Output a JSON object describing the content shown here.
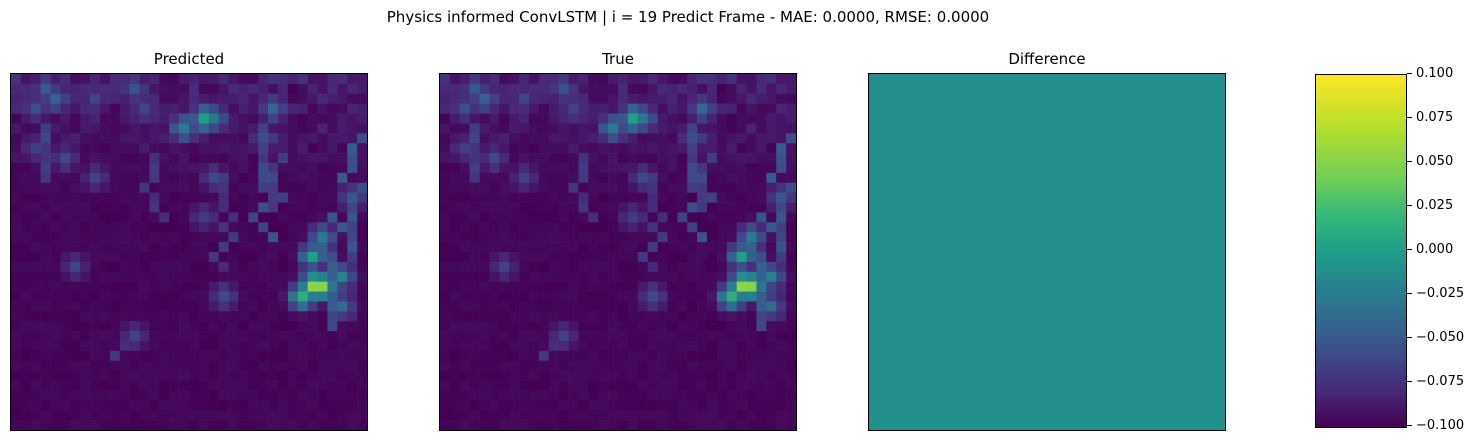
{
  "suptitle": "Physics informed ConvLSTM | i = 19 Predict Frame - MAE: 0.0000, RMSE: 0.0000",
  "chart_data": {
    "type": "heatmap",
    "panels": [
      {
        "title": "Predicted"
      },
      {
        "title": "True"
      },
      {
        "title": "Difference"
      }
    ],
    "grid_size": 36,
    "difference_value": 0.0,
    "colormap": "viridis",
    "colorbar": {
      "vmin": -0.1,
      "vmax": 0.1,
      "ticks": [
        "0.100",
        "0.075",
        "0.050",
        "0.025",
        "0.000",
        "−0.025",
        "−0.050",
        "−0.075",
        "−0.100"
      ]
    },
    "field_hotspots": [
      {
        "r": 2,
        "c": 4,
        "v": 0.28
      },
      {
        "r": 1,
        "c": 3,
        "v": 0.24
      },
      {
        "r": 3,
        "c": 2,
        "v": 0.2
      },
      {
        "r": 2,
        "c": 8,
        "v": 0.18
      },
      {
        "r": 1,
        "c": 12,
        "v": 0.24
      },
      {
        "r": 3,
        "c": 13,
        "v": 0.18
      },
      {
        "r": 4,
        "c": 19,
        "v": 0.46
      },
      {
        "r": 5,
        "c": 17,
        "v": 0.38
      },
      {
        "r": 4,
        "c": 20,
        "v": 0.34
      },
      {
        "r": 3,
        "c": 26,
        "v": 0.28
      },
      {
        "r": 6,
        "c": 25,
        "v": 0.2
      },
      {
        "r": 7,
        "c": 2,
        "v": 0.16
      },
      {
        "r": 8,
        "c": 5,
        "v": 0.18
      },
      {
        "r": 10,
        "c": 8,
        "v": 0.16
      },
      {
        "r": 10,
        "c": 20,
        "v": 0.18
      },
      {
        "r": 12,
        "c": 34,
        "v": 0.24
      },
      {
        "r": 14,
        "c": 19,
        "v": 0.16
      },
      {
        "r": 16,
        "c": 31,
        "v": 0.36
      },
      {
        "r": 18,
        "c": 30,
        "v": 0.44
      },
      {
        "r": 21,
        "c": 30,
        "v": 0.72
      },
      {
        "r": 21,
        "c": 31,
        "v": 0.64
      },
      {
        "r": 22,
        "c": 29,
        "v": 0.56
      },
      {
        "r": 20,
        "c": 33,
        "v": 0.34
      },
      {
        "r": 23,
        "c": 33,
        "v": 0.28
      },
      {
        "r": 19,
        "c": 6,
        "v": 0.16
      },
      {
        "r": 22,
        "c": 21,
        "v": 0.2
      },
      {
        "r": 26,
        "c": 12,
        "v": 0.16
      }
    ],
    "field_streaks": [
      {
        "c": 25,
        "r0": 5,
        "r1": 16,
        "v": 0.2
      },
      {
        "c": 26,
        "r0": 8,
        "r1": 13,
        "v": 0.18
      },
      {
        "c": 3,
        "r0": 5,
        "r1": 10,
        "v": 0.16
      },
      {
        "c": 14,
        "r0": 8,
        "r1": 14,
        "v": 0.14
      },
      {
        "c": 21,
        "r0": 10,
        "r1": 19,
        "v": 0.14
      },
      {
        "c": 34,
        "r0": 6,
        "r1": 18,
        "v": 0.22
      },
      {
        "c": 32,
        "r0": 14,
        "r1": 25,
        "v": 0.24
      },
      {
        "c": 11,
        "r0": 26,
        "r1": 28,
        "v": 0.12
      }
    ]
  }
}
